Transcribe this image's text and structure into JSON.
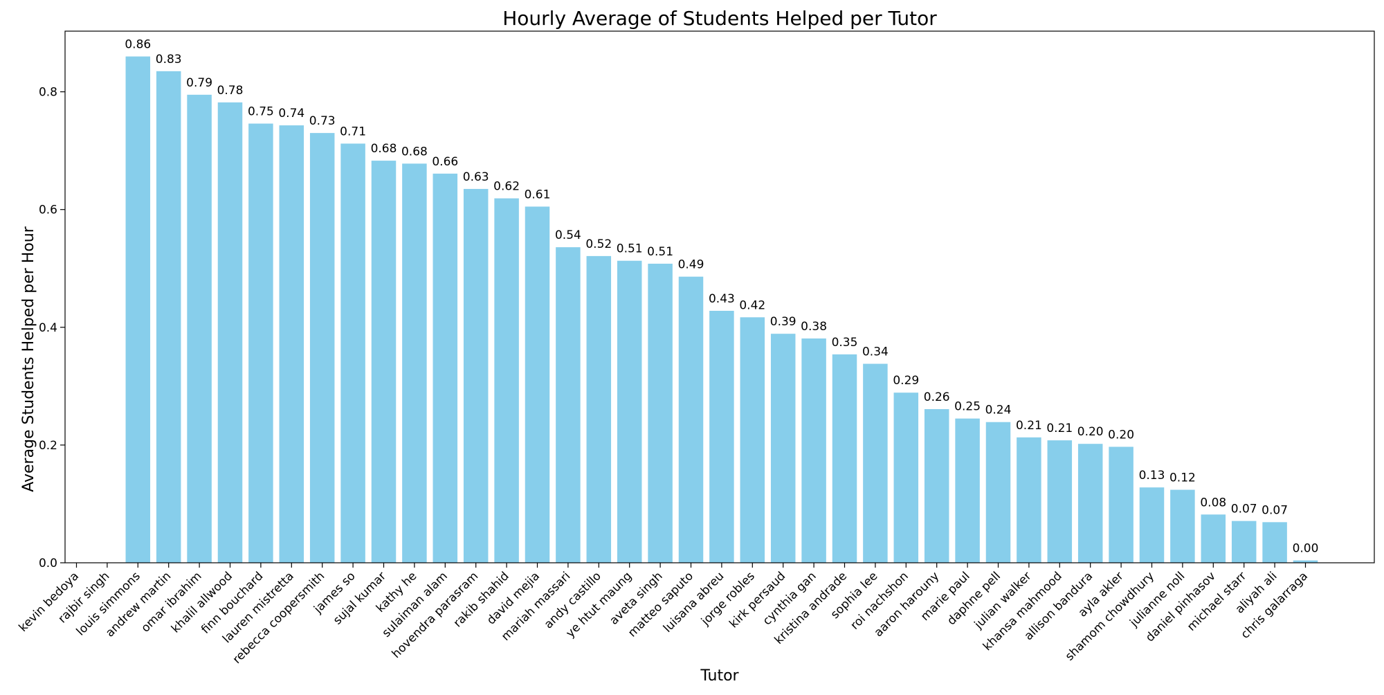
{
  "chart_data": {
    "type": "bar",
    "title": "Hourly Average of Students Helped per Tutor",
    "xlabel": "Tutor",
    "ylabel": "Average Students Helped per Hour",
    "ylim": [
      0,
      0.903
    ],
    "yticks": [
      "0.0",
      "0.2",
      "0.4",
      "0.6",
      "0.8"
    ],
    "grid": false,
    "bar_color": "#87CEEB",
    "categories": [
      "kevin bedoya",
      "rajbir singh",
      "louis simmons",
      "andrew martin",
      "omar ibrahim",
      "khalil allwood",
      "finn bouchard",
      "lauren mistretta",
      "rebecca coopersmith",
      "james so",
      "sujal kumar",
      "kathy he",
      "sulaiman alam",
      "hovendra parasram",
      "rakib shahid",
      "david mejia",
      "mariah massari",
      "andy castillo",
      "ye htut maung",
      "aveta singh",
      "matteo saputo",
      "luisana abreu",
      "jorge robles",
      "kirk persaud",
      "cynthia gan",
      "kristina andrade",
      "sophia lee",
      "roi nachshon",
      "aaron harouny",
      "marie paul",
      "daphne pell",
      "julian walker",
      "khansa mahmood",
      "allison bandura",
      "ayla akler",
      "shamom chowdhury",
      "julianne noll",
      "daniel pinhasov",
      "michael starr",
      "aliyah ali",
      "chris galarraga"
    ],
    "values": [
      null,
      null,
      0.86,
      0.835,
      0.795,
      0.782,
      0.746,
      0.743,
      0.73,
      0.712,
      0.683,
      0.678,
      0.661,
      0.635,
      0.619,
      0.605,
      0.536,
      0.521,
      0.513,
      0.508,
      0.486,
      0.428,
      0.417,
      0.389,
      0.381,
      0.354,
      0.338,
      0.289,
      0.261,
      0.245,
      0.239,
      0.213,
      0.208,
      0.202,
      0.197,
      0.128,
      0.124,
      0.082,
      0.071,
      0.069,
      0.004
    ],
    "data_labels": [
      "",
      "",
      "0.86",
      "0.83",
      "0.79",
      "0.78",
      "0.75",
      "0.74",
      "0.73",
      "0.71",
      "0.68",
      "0.68",
      "0.66",
      "0.63",
      "0.62",
      "0.61",
      "0.54",
      "0.52",
      "0.51",
      "0.51",
      "0.49",
      "0.43",
      "0.42",
      "0.39",
      "0.38",
      "0.35",
      "0.34",
      "0.29",
      "0.26",
      "0.25",
      "0.24",
      "0.21",
      "0.21",
      "0.20",
      "0.20",
      "0.13",
      "0.12",
      "0.08",
      "0.07",
      "0.07",
      "0.00"
    ]
  }
}
